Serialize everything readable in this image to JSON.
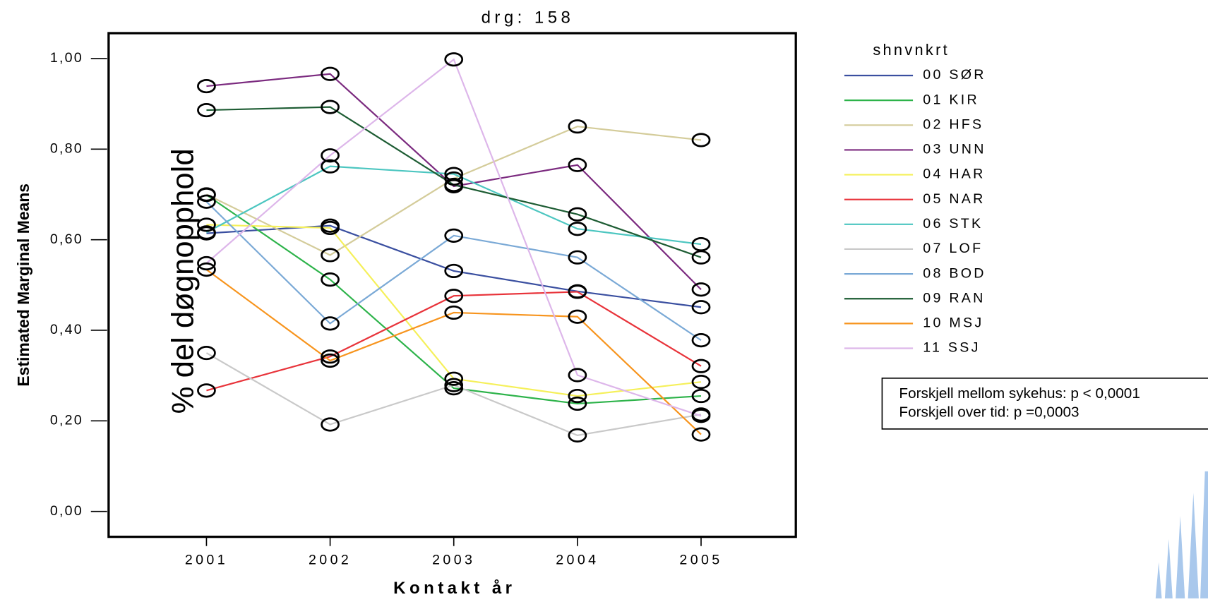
{
  "chart_data": {
    "type": "line",
    "title": "drg: 158",
    "x_label": "Kontakt år",
    "y_label": "Estimated Marginal Means",
    "annotation": "% del døgnopphold",
    "legend_title": "shnvnkrt",
    "stats_box": [
      "Forskjell mellom sykehus: p < 0,0001",
      "Forskjell over tid: p =0,0003"
    ],
    "categories": [
      "2001",
      "2002",
      "2003",
      "2004",
      "2005"
    ],
    "ylim": [
      -0.056,
      1.056
    ],
    "yticks": [
      {
        "value": 0,
        "label": "0,00"
      },
      {
        "value": 0.2,
        "label": "0,20"
      },
      {
        "value": 0.4,
        "label": "0,40"
      },
      {
        "value": 0.6,
        "label": "0,60"
      },
      {
        "value": 0.8,
        "label": "0,80"
      },
      {
        "value": 1,
        "label": "1,00"
      }
    ],
    "marker_color": "#000000",
    "series": [
      {
        "name": "00 SØR",
        "color": "#3a4fa0",
        "values": [
          0.614,
          0.631,
          0.531,
          0.486,
          0.451
        ]
      },
      {
        "name": "01 KIR",
        "color": "#2db34a",
        "values": [
          0.699,
          0.512,
          0.272,
          0.238,
          0.255
        ]
      },
      {
        "name": "02 HFS",
        "color": "#d4cc9a",
        "values": [
          0.7,
          0.566,
          0.735,
          0.85,
          0.82
        ]
      },
      {
        "name": "03 UNN",
        "color": "#7b2a7f",
        "values": [
          0.939,
          0.966,
          0.718,
          0.765,
          0.49
        ]
      },
      {
        "name": "04 HAR",
        "color": "#f5f05a",
        "values": [
          0.633,
          0.626,
          0.293,
          0.255,
          0.286
        ]
      },
      {
        "name": "05 NAR",
        "color": "#e8333a",
        "values": [
          0.267,
          0.342,
          0.476,
          0.485,
          0.321
        ]
      },
      {
        "name": "06 STK",
        "color": "#4cc6c0",
        "values": [
          0.616,
          0.762,
          0.745,
          0.624,
          0.59
        ]
      },
      {
        "name": "07 LOF",
        "color": "#c9c9c9",
        "values": [
          0.35,
          0.192,
          0.279,
          0.168,
          0.214
        ]
      },
      {
        "name": "08 BOD",
        "color": "#7aa9d6",
        "values": [
          0.684,
          0.415,
          0.609,
          0.561,
          0.378
        ]
      },
      {
        "name": "09 RAN",
        "color": "#1d5c33",
        "values": [
          0.886,
          0.893,
          0.721,
          0.656,
          0.561
        ]
      },
      {
        "name": "10 MSJ",
        "color": "#f7941d",
        "values": [
          0.534,
          0.333,
          0.439,
          0.43,
          0.17
        ]
      },
      {
        "name": "11 SSJ",
        "color": "#ddb6ea",
        "values": [
          0.548,
          0.786,
          0.998,
          0.301,
          0.211
        ]
      }
    ]
  }
}
